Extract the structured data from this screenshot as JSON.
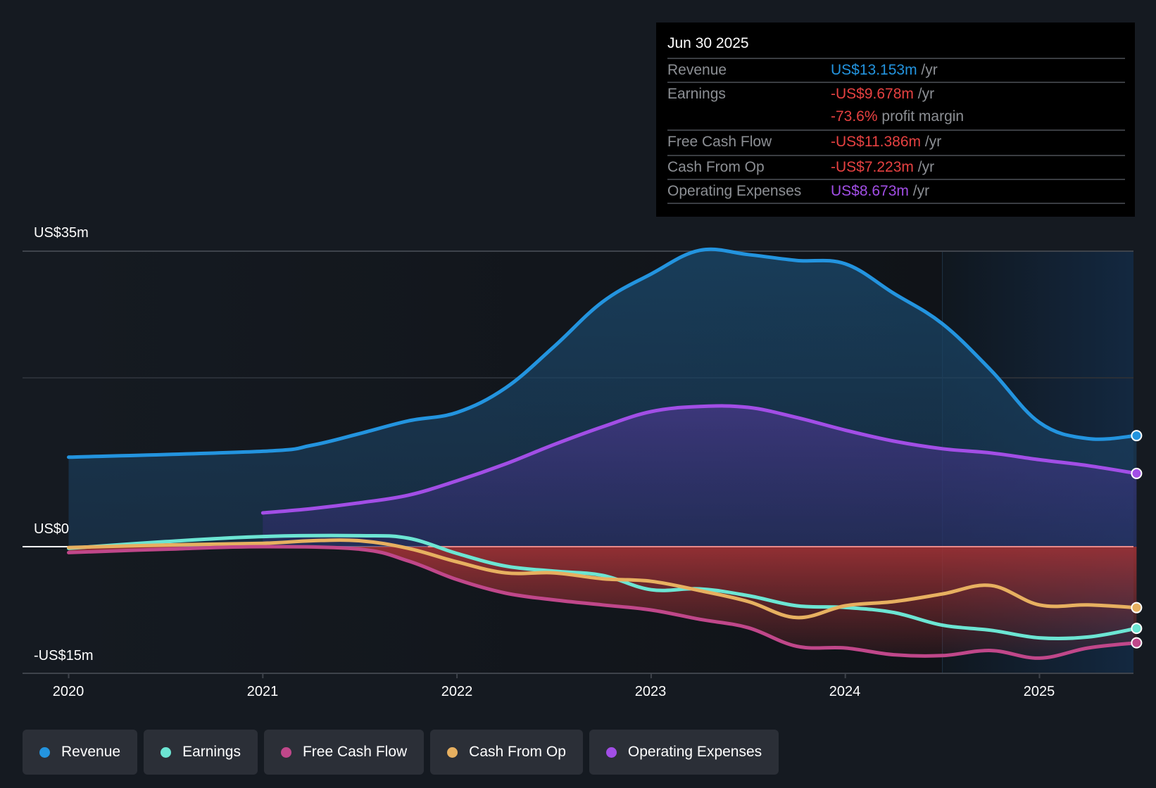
{
  "tooltip": {
    "date": "Jun 30 2025",
    "rows": [
      {
        "label": "Revenue",
        "value": "US$13.153m",
        "unit": "/yr",
        "color": "#2394df"
      },
      {
        "label": "Earnings",
        "value": "-US$9.678m",
        "unit": "/yr",
        "color": "#e64141"
      },
      {
        "label": "",
        "value": "-73.6%",
        "unit": "profit margin",
        "color": "#e64141"
      },
      {
        "label": "Free Cash Flow",
        "value": "-US$11.386m",
        "unit": "/yr",
        "color": "#e64141"
      },
      {
        "label": "Cash From Op",
        "value": "-US$7.223m",
        "unit": "/yr",
        "color": "#e64141"
      },
      {
        "label": "Operating Expenses",
        "value": "US$8.673m",
        "unit": "/yr",
        "color": "#a24ee6"
      }
    ]
  },
  "legend": [
    {
      "label": "Revenue",
      "color": "#2394df"
    },
    {
      "label": "Earnings",
      "color": "#6ce5d3"
    },
    {
      "label": "Free Cash Flow",
      "color": "#c0478a"
    },
    {
      "label": "Cash From Op",
      "color": "#e7b060"
    },
    {
      "label": "Operating Expenses",
      "color": "#a24ee6"
    }
  ],
  "chart_data": {
    "type": "area",
    "title": "",
    "xlabel": "",
    "ylabel": "",
    "ylim": [
      -15,
      35
    ],
    "xlim": [
      2019.75,
      2025.5
    ],
    "y_tick_labels": [
      {
        "value": 35,
        "label": "US$35m"
      },
      {
        "value": 0,
        "label": "US$0"
      },
      {
        "value": -15,
        "label": "-US$15m"
      }
    ],
    "gridlines": [
      35,
      20,
      0,
      -15
    ],
    "x_ticks": [
      2020,
      2021,
      2022,
      2023,
      2024,
      2025
    ],
    "x_tick_labels": [
      "2020",
      "2021",
      "2022",
      "2023",
      "2024",
      "2025"
    ],
    "past_period_start": 2024.5,
    "series": [
      {
        "name": "Revenue",
        "color": "#2394df",
        "x": [
          2020.0,
          2021.0,
          2021.25,
          2021.5,
          2021.75,
          2022.0,
          2022.25,
          2022.5,
          2022.75,
          2023.0,
          2023.25,
          2023.5,
          2023.75,
          2024.0,
          2024.25,
          2024.5,
          2024.75,
          2025.0,
          2025.25,
          2025.5
        ],
        "values": [
          10.6,
          11.3,
          12.0,
          13.4,
          14.9,
          15.9,
          18.8,
          23.7,
          29.0,
          32.3,
          35.1,
          34.6,
          33.9,
          33.5,
          30.0,
          26.4,
          20.9,
          14.7,
          12.8,
          13.153
        ]
      },
      {
        "name": "Operating Expenses",
        "color": "#a24ee6",
        "x": [
          2021.0,
          2021.25,
          2021.5,
          2021.75,
          2022.0,
          2022.25,
          2022.5,
          2022.75,
          2023.0,
          2023.25,
          2023.5,
          2023.75,
          2024.0,
          2024.25,
          2024.5,
          2024.75,
          2025.0,
          2025.25,
          2025.5
        ],
        "values": [
          4.0,
          4.5,
          5.2,
          6.1,
          7.8,
          9.8,
          12.1,
          14.2,
          16.0,
          16.6,
          16.5,
          15.3,
          13.8,
          12.5,
          11.6,
          11.1,
          10.3,
          9.6,
          8.673
        ]
      },
      {
        "name": "Earnings",
        "color": "#6ce5d3",
        "x": [
          2020.0,
          2020.5,
          2021.0,
          2021.5,
          2021.75,
          2022.0,
          2022.25,
          2022.5,
          2022.75,
          2023.0,
          2023.25,
          2023.5,
          2023.75,
          2024.0,
          2024.25,
          2024.5,
          2024.75,
          2025.0,
          2025.25,
          2025.5
        ],
        "values": [
          -0.2,
          0.6,
          1.2,
          1.3,
          1.0,
          -0.8,
          -2.3,
          -2.9,
          -3.4,
          -5.1,
          -5.0,
          -5.8,
          -7.0,
          -7.2,
          -7.8,
          -9.3,
          -9.9,
          -10.8,
          -10.7,
          -9.678
        ]
      },
      {
        "name": "Cash From Op",
        "color": "#e7b060",
        "x": [
          2020.0,
          2020.5,
          2021.0,
          2021.25,
          2021.5,
          2021.75,
          2022.0,
          2022.25,
          2022.5,
          2022.75,
          2023.0,
          2023.25,
          2023.5,
          2023.75,
          2024.0,
          2024.25,
          2024.5,
          2024.75,
          2025.0,
          2025.25,
          2025.5
        ],
        "values": [
          -0.1,
          0.2,
          0.4,
          0.7,
          0.7,
          -0.2,
          -1.8,
          -3.1,
          -3.1,
          -3.8,
          -4.1,
          -5.2,
          -6.5,
          -8.4,
          -7.0,
          -6.5,
          -5.6,
          -4.6,
          -6.9,
          -6.9,
          -7.223
        ]
      },
      {
        "name": "Free Cash Flow",
        "color": "#c0478a",
        "x": [
          2020.0,
          2020.5,
          2021.0,
          2021.5,
          2021.75,
          2022.0,
          2022.25,
          2022.5,
          2022.75,
          2023.0,
          2023.25,
          2023.5,
          2023.75,
          2024.0,
          2024.25,
          2024.5,
          2024.75,
          2025.0,
          2025.25,
          2025.5
        ],
        "values": [
          -0.7,
          -0.3,
          0.0,
          -0.3,
          -1.7,
          -3.9,
          -5.5,
          -6.3,
          -6.9,
          -7.5,
          -8.6,
          -9.6,
          -11.8,
          -12.0,
          -12.8,
          -12.9,
          -12.3,
          -13.2,
          -12.0,
          -11.386
        ]
      }
    ]
  }
}
